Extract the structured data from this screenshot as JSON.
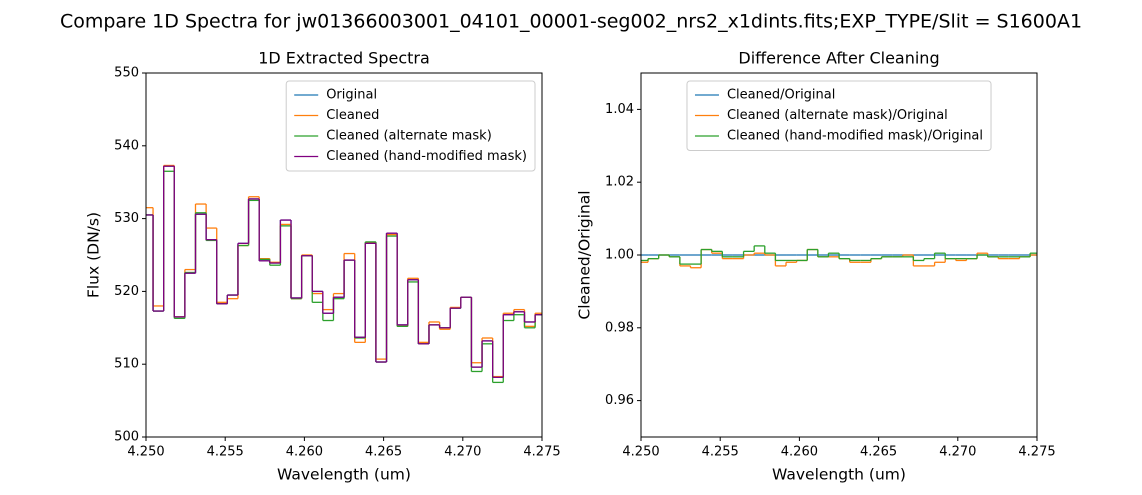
{
  "title": "Compare 1D Spectra for jw01366003001_04101_00001-seg002_nrs2_x1dints.fits;EXP_TYPE/Slit = S1600A1",
  "chart_data": [
    {
      "type": "line",
      "drawstyle": "steps-mid",
      "title": "1D Extracted Spectra",
      "x_label": "Wavelength (um)",
      "y_label": "Flux (DN/s)",
      "xlim": [
        4.25,
        4.275
      ],
      "ylim": [
        500,
        550
      ],
      "xticks": [
        {
          "value": 4.25,
          "label": "4.250"
        },
        {
          "value": 4.255,
          "label": "4.255"
        },
        {
          "value": 4.26,
          "label": "4.260"
        },
        {
          "value": 4.265,
          "label": "4.265"
        },
        {
          "value": 4.27,
          "label": "4.270"
        },
        {
          "value": 4.275,
          "label": "4.275"
        }
      ],
      "yticks": [
        500,
        510,
        520,
        530,
        540,
        550
      ],
      "legend": "upper right",
      "x": [
        4.25011,
        4.25078,
        4.25145,
        4.25212,
        4.25279,
        4.25346,
        4.25413,
        4.2548,
        4.25547,
        4.25614,
        4.25681,
        4.25748,
        4.25815,
        4.25882,
        4.25949,
        4.26016,
        4.26083,
        4.2615,
        4.26217,
        4.26284,
        4.26351,
        4.26418,
        4.26485,
        4.26552,
        4.26619,
        4.26686,
        4.26753,
        4.2682,
        4.26887,
        4.26954,
        4.27021,
        4.27088,
        4.27155,
        4.27222,
        4.27289,
        4.27356,
        4.27423,
        4.2749
      ],
      "series": [
        {
          "name": "Original",
          "color": "#1f77b4",
          "values": [
            530.5,
            517.3,
            537.2,
            516.5,
            522.5,
            530.6,
            527.1,
            518.3,
            519.5,
            526.6,
            532.7,
            524.2,
            523.9,
            529.8,
            519.1,
            524.9,
            520.0,
            517.0,
            519.2,
            524.3,
            513.7,
            526.6,
            510.3,
            528.0,
            515.4,
            521.6,
            512.8,
            515.4,
            515.0,
            517.7,
            519.2,
            509.6,
            513.2,
            508.2,
            516.8,
            517.2,
            515.8,
            516.8
          ]
        },
        {
          "name": "Cleaned",
          "color": "#ff7f0e",
          "values": [
            531.5,
            518.0,
            537.3,
            516.5,
            523.0,
            532.0,
            528.7,
            518.5,
            519.0,
            526.3,
            533.0,
            524.5,
            524.0,
            529.2,
            519.0,
            525.0,
            519.7,
            517.5,
            519.7,
            525.2,
            513.0,
            526.7,
            510.7,
            527.8,
            515.2,
            521.8,
            513.0,
            515.8,
            514.8,
            517.8,
            519.2,
            510.2,
            513.6,
            508.3,
            517.0,
            517.5,
            515.2,
            517.0
          ]
        },
        {
          "name": "Cleaned (alternate mask)",
          "color": "#2ca02c",
          "values": [
            530.5,
            517.3,
            536.5,
            516.3,
            522.6,
            530.8,
            527.0,
            518.3,
            519.5,
            526.3,
            532.5,
            524.4,
            523.6,
            529.0,
            519.0,
            524.9,
            518.5,
            516.0,
            519.0,
            524.3,
            513.6,
            526.8,
            510.3,
            527.6,
            515.2,
            521.3,
            512.8,
            515.4,
            515.0,
            517.7,
            519.2,
            509.0,
            512.8,
            507.5,
            516.0,
            516.8,
            515.0,
            516.8
          ]
        },
        {
          "name": "Cleaned (hand-modified mask)",
          "color": "#800080",
          "values": [
            530.5,
            517.3,
            537.2,
            516.5,
            522.5,
            530.6,
            527.1,
            518.3,
            519.5,
            526.6,
            532.7,
            524.2,
            523.9,
            529.8,
            519.1,
            524.9,
            520.0,
            517.0,
            519.2,
            524.3,
            513.7,
            526.6,
            510.3,
            528.0,
            515.4,
            521.6,
            512.8,
            515.4,
            515.0,
            517.7,
            519.2,
            509.6,
            513.2,
            508.2,
            516.8,
            517.2,
            515.8,
            516.8
          ]
        }
      ]
    },
    {
      "type": "line",
      "drawstyle": "steps-mid",
      "title": "Difference After Cleaning",
      "x_label": "Wavelength (um)",
      "y_label": "Cleaned/Original",
      "xlim": [
        4.25,
        4.275
      ],
      "ylim": [
        0.95,
        1.05
      ],
      "xticks": [
        {
          "value": 4.25,
          "label": "4.250"
        },
        {
          "value": 4.255,
          "label": "4.255"
        },
        {
          "value": 4.26,
          "label": "4.260"
        },
        {
          "value": 4.265,
          "label": "4.265"
        },
        {
          "value": 4.27,
          "label": "4.270"
        },
        {
          "value": 4.275,
          "label": "4.275"
        }
      ],
      "yticks": [
        0.96,
        0.98,
        {
          "value": 1.0,
          "label": "1.00"
        },
        1.02,
        1.04
      ],
      "legend": "upper center",
      "x": [
        4.25011,
        4.25078,
        4.25145,
        4.25212,
        4.25279,
        4.25346,
        4.25413,
        4.2548,
        4.25547,
        4.25614,
        4.25681,
        4.25748,
        4.25815,
        4.25882,
        4.25949,
        4.26016,
        4.26083,
        4.2615,
        4.26217,
        4.26284,
        4.26351,
        4.26418,
        4.26485,
        4.26552,
        4.26619,
        4.26686,
        4.26753,
        4.2682,
        4.26887,
        4.26954,
        4.27021,
        4.27088,
        4.27155,
        4.27222,
        4.27289,
        4.27356,
        4.27423,
        4.2749
      ],
      "series": [
        {
          "name": "Cleaned/Original",
          "color": "#1f77b4",
          "values": [
            1.0,
            1.0,
            1.0,
            1.0,
            1.0,
            1.0,
            1.0,
            1.0,
            1.0,
            1.0,
            1.0,
            1.0,
            1.0,
            1.0,
            1.0,
            1.0,
            1.0,
            1.0,
            1.0,
            1.0,
            1.0,
            1.0,
            1.0,
            1.0,
            1.0,
            1.0,
            1.0,
            1.0,
            1.0,
            1.0,
            1.0,
            1.0,
            1.0,
            1.0,
            1.0,
            1.0,
            1.0,
            1.0
          ]
        },
        {
          "name": "Cleaned (alternate mask)/Original",
          "color": "#ff7f0e",
          "values": [
            0.998,
            0.999,
            1.0,
            0.9995,
            0.997,
            0.9965,
            1.0015,
            1.0005,
            0.999,
            0.999,
            1.0,
            1.0005,
            1.0,
            0.997,
            0.998,
            0.9985,
            1.0015,
            0.9995,
            0.9995,
            0.999,
            0.998,
            0.998,
            0.999,
            0.9995,
            0.9995,
            1.0,
            0.997,
            0.997,
            0.998,
            0.999,
            0.9985,
            0.999,
            1.0005,
            0.9995,
            0.999,
            0.999,
            0.9995,
            1.0
          ]
        },
        {
          "name": "Cleaned (hand-modified mask)/Original",
          "color": "#2ca02c",
          "values": [
            0.9985,
            0.999,
            1.0,
            0.9995,
            0.9975,
            0.9975,
            1.0015,
            1.001,
            0.9995,
            0.9995,
            1.001,
            1.0025,
            1.0005,
            0.9985,
            0.9985,
            0.9985,
            1.0015,
            0.9995,
            1.0005,
            0.999,
            0.9985,
            0.9985,
            0.999,
            0.9995,
            0.9995,
            0.9995,
            0.9985,
            0.999,
            1.0005,
            0.999,
            0.999,
            0.999,
            1.0,
            0.9995,
            0.9995,
            0.9995,
            0.9995,
            1.0005
          ]
        }
      ]
    }
  ]
}
